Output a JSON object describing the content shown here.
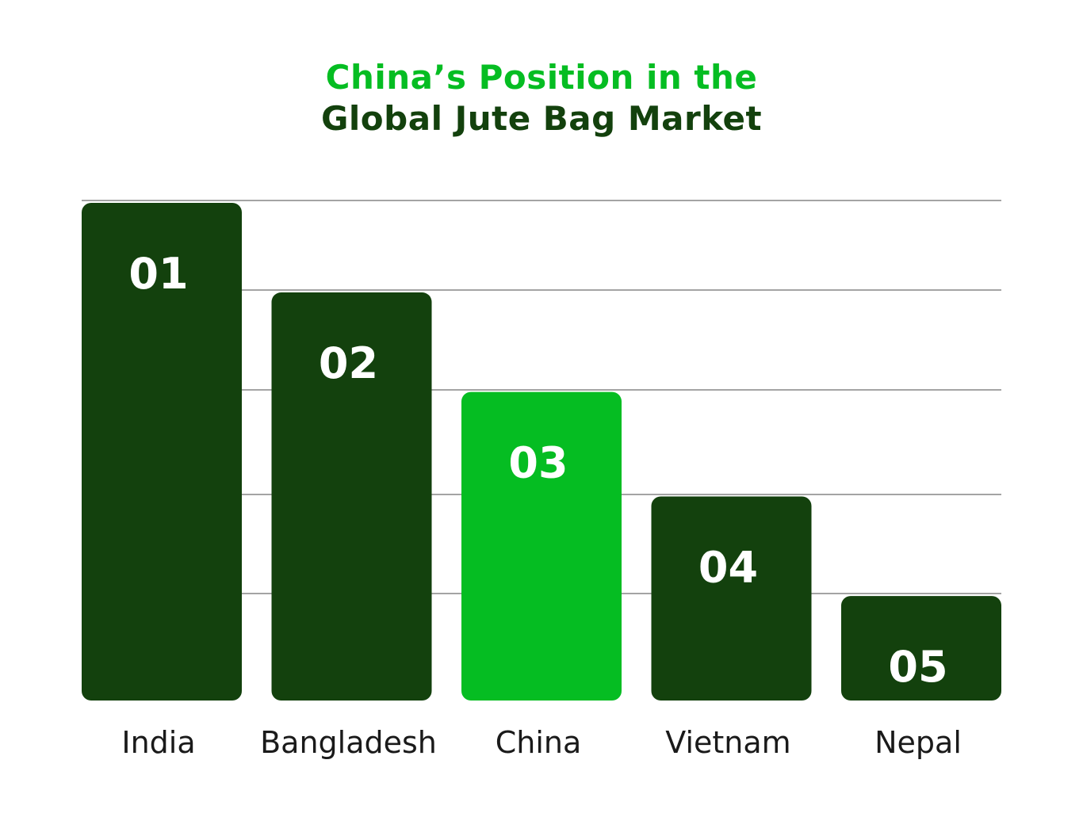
{
  "title": {
    "line1": "China’s Position in the",
    "line2": "Global Jute Bag Market"
  },
  "colors": {
    "bar": "#13410d",
    "highlight": "#05bd22",
    "title_line1": "#05bd22",
    "title_line2": "#13410d",
    "gridline": "#4a4a4a",
    "bar_label": "#ffffff",
    "category_label": "#1a1a1a"
  },
  "chart_data": {
    "type": "bar",
    "title": "China’s Position in the Global Jute Bag Market",
    "categories": [
      "India",
      "Bangladesh",
      "China",
      "Vietnam",
      "Nepal"
    ],
    "values": [
      5,
      4.1,
      3.1,
      2.05,
      1.05
    ],
    "bar_labels": [
      "01",
      "02",
      "03",
      "04",
      "05"
    ],
    "highlight_index": 2,
    "xlabel": "",
    "ylabel": "",
    "ylim": [
      0,
      5
    ],
    "grid": true,
    "legend": "none"
  }
}
